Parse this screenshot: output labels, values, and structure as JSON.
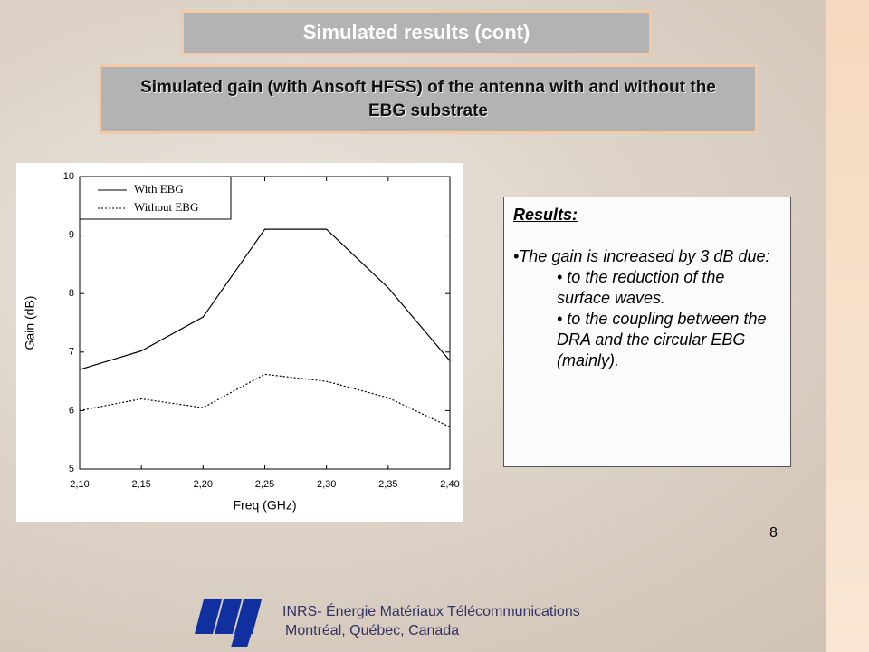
{
  "title": "Simulated results (cont)",
  "subtitle": "Simulated gain (with Ansoft HFSS) of the antenna with and without the EBG substrate",
  "results": {
    "heading": "Results:",
    "items": [
      "•The gain is increased by 3 dB due:",
      "• to the reduction of the surface waves.",
      "• to the coupling between the DRA and the circular EBG (mainly)."
    ]
  },
  "page_number": "8",
  "footer": [
    "INRS- Énergie Matériaux Télécommunications",
    "Montréal, Québec, Canada"
  ],
  "chart_data": {
    "type": "line",
    "x_label": "Freq (GHz)",
    "y_label": "Gain (dB)",
    "x": [
      2.1,
      2.15,
      2.2,
      2.25,
      2.3,
      2.35,
      2.4
    ],
    "series": [
      {
        "name": "With EBG",
        "color": "#000000",
        "linestyle": "solid",
        "values": [
          6.7,
          7.02,
          7.6,
          9.1,
          9.1,
          8.1,
          6.85
        ]
      },
      {
        "name": "Without EBG",
        "color": "#000000",
        "linestyle": "dotted",
        "values": [
          6.0,
          6.2,
          6.05,
          6.62,
          6.5,
          6.22,
          5.72
        ]
      }
    ],
    "xlim": [
      2.1,
      2.4
    ],
    "ylim": [
      5,
      10
    ],
    "xticks": [
      {
        "value": 2.1,
        "label": "2,10"
      },
      {
        "value": 2.15,
        "label": "2,15"
      },
      {
        "value": 2.2,
        "label": "2,20"
      },
      {
        "value": 2.25,
        "label": "2,25"
      },
      {
        "value": 2.3,
        "label": "2,30"
      },
      {
        "value": 2.35,
        "label": "2,35"
      },
      {
        "value": 2.4,
        "label": "2,40"
      }
    ],
    "yticks": [
      5,
      6,
      7,
      8,
      9,
      10
    ],
    "legend": "upper-left"
  }
}
